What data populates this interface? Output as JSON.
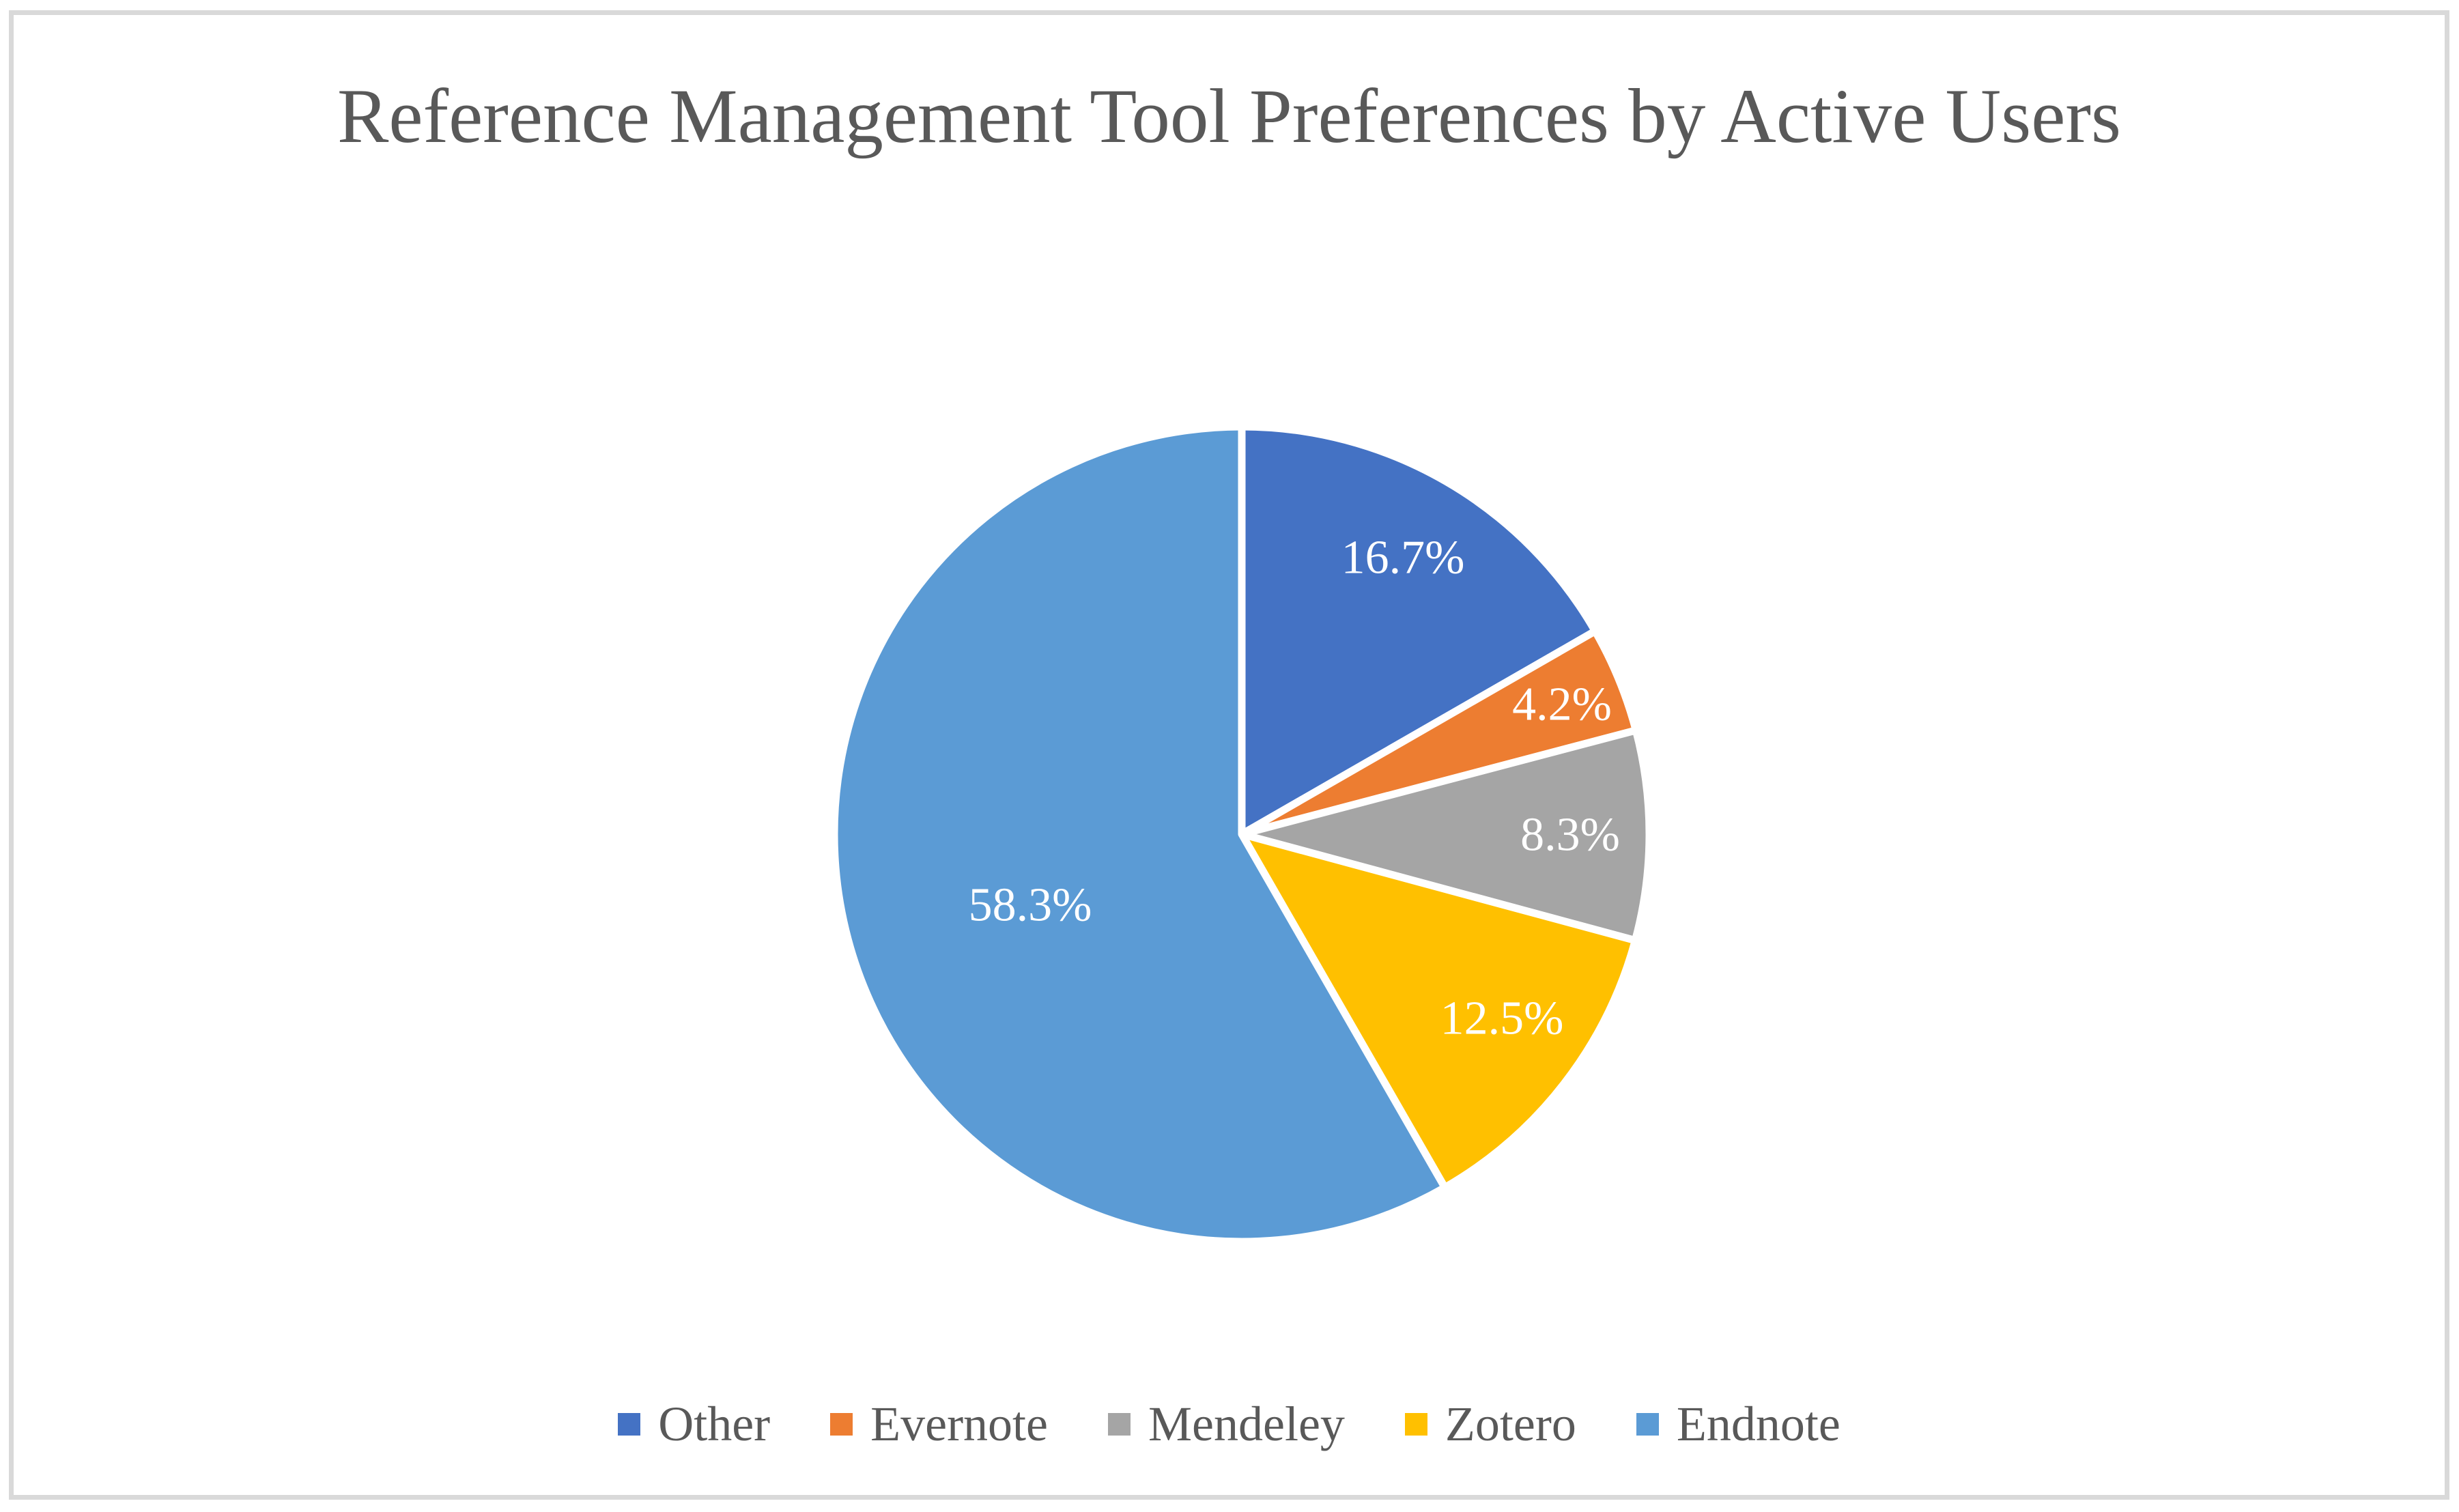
{
  "frame": {
    "border_color": "#D9D9D9",
    "background_color": "#FFFFFF"
  },
  "chart_data": {
    "type": "pie",
    "title": "Reference Management Tool Preferences by Active Users",
    "categories": [
      "Other",
      "Evernote",
      "Mendeley",
      "Zotero",
      "Endnote"
    ],
    "values": [
      16.7,
      4.2,
      8.3,
      12.5,
      58.3
    ],
    "data_labels": [
      "16.7%",
      "4.2%",
      "8.3%",
      "12.5%",
      "58.3%"
    ],
    "slice_colors": [
      "#4472C4",
      "#ED7D31",
      "#A5A5A5",
      "#FFC000",
      "#5B9BD5"
    ],
    "start_angle_deg": 0,
    "direction": "clockwise",
    "separator_color": "#FFFFFF",
    "data_label_color": "#FFFFFF",
    "title_color": "#595959",
    "legend_text_color": "#595959",
    "legend_position": "bottom",
    "grid": false
  }
}
